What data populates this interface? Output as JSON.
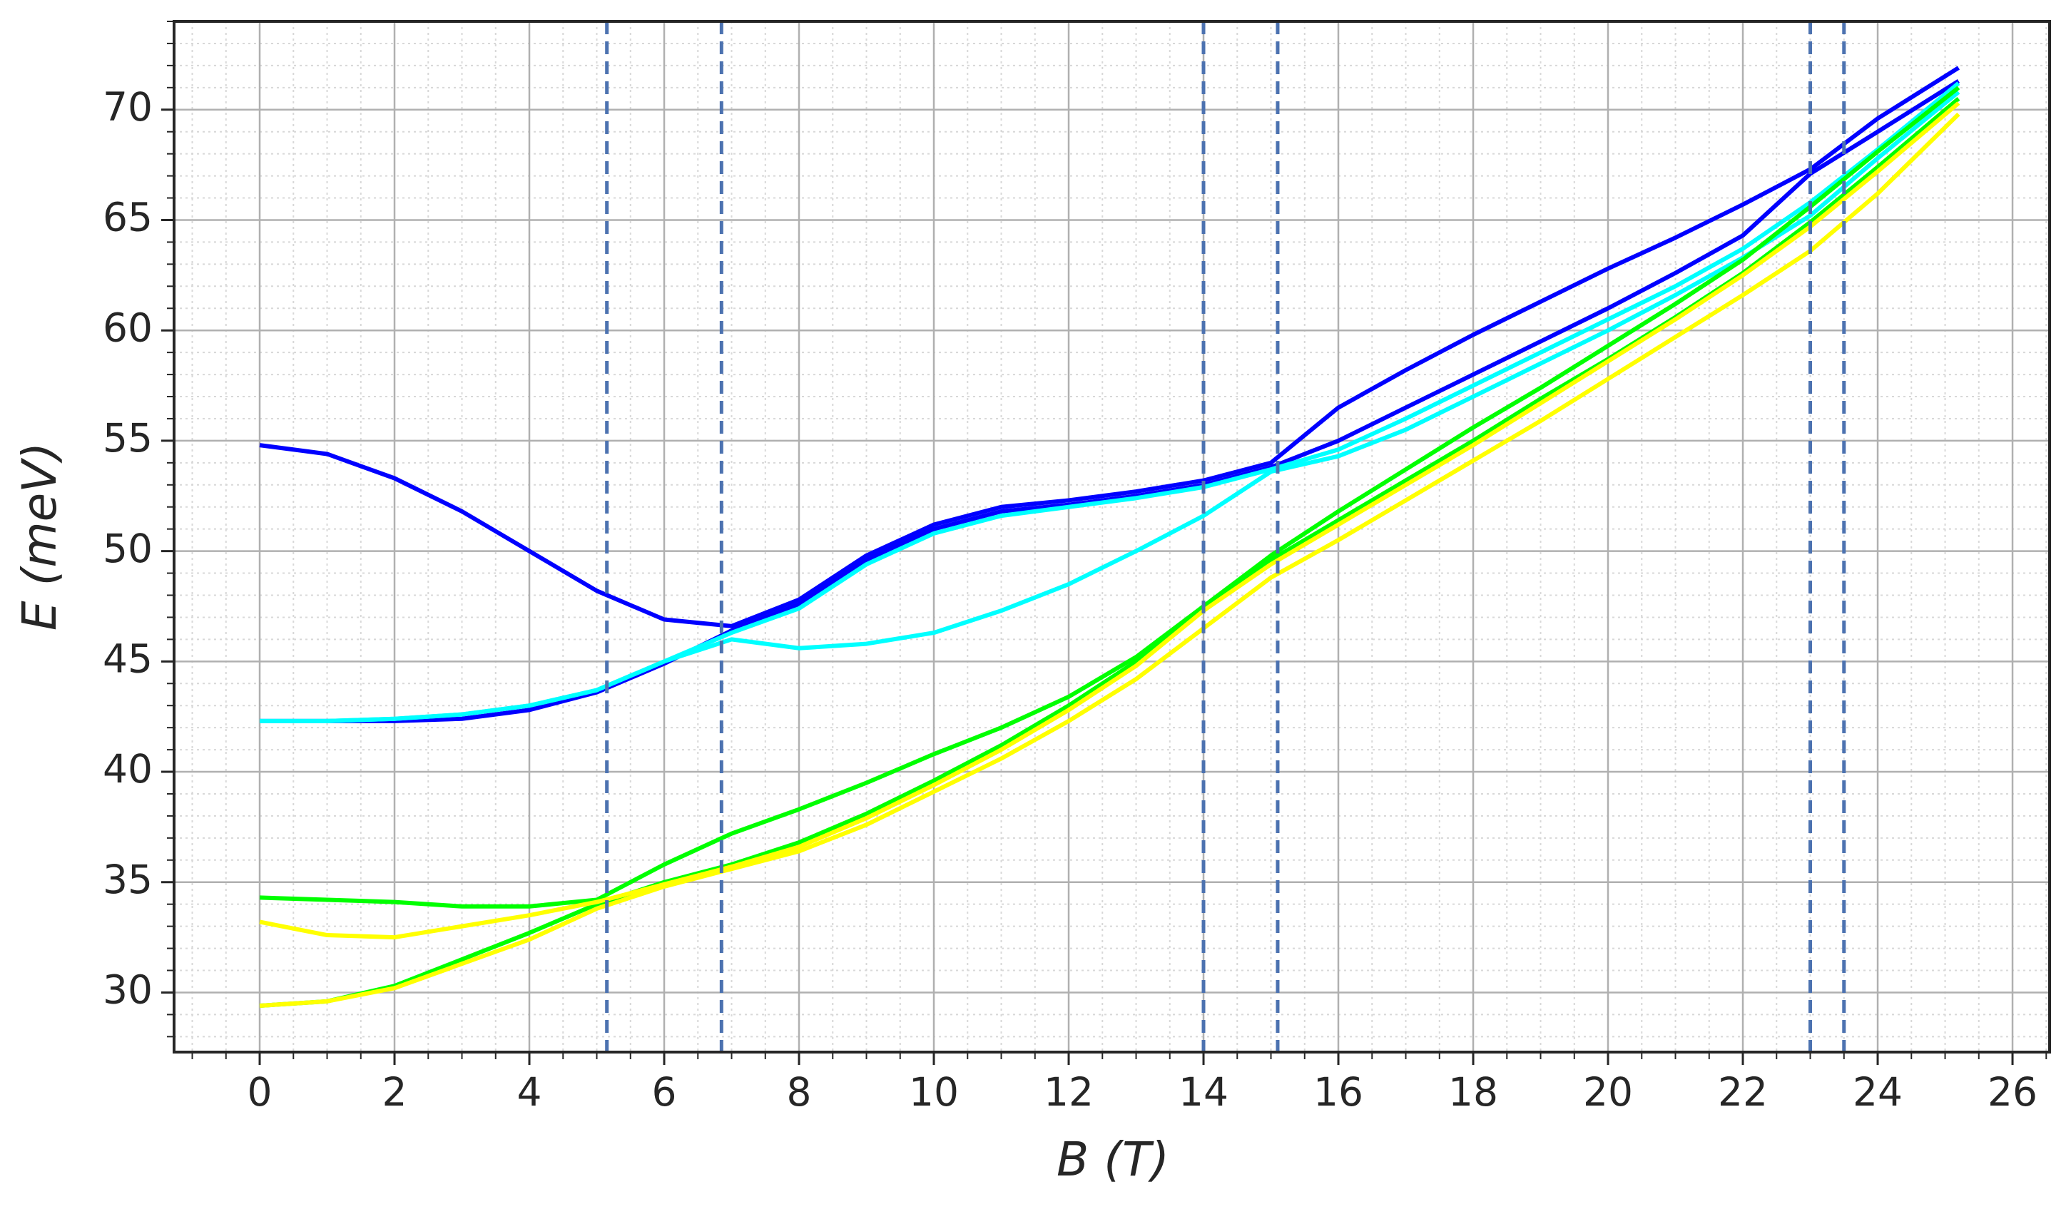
{
  "chart_data": {
    "type": "line",
    "xlabel": "B (T)",
    "ylabel": "E (meV)",
    "x": [
      0,
      1,
      2,
      3,
      4,
      5,
      6,
      7,
      8,
      9,
      10,
      11,
      12,
      13,
      14,
      15,
      16,
      17,
      18,
      19,
      20,
      21,
      22,
      23,
      24,
      25.2
    ],
    "series": [
      {
        "color": "#0000ff",
        "values": [
          54.8,
          54.4,
          53.3,
          51.8,
          50,
          48.2,
          46.9,
          46.6,
          47.8,
          49.8,
          51.2,
          52,
          52.3,
          52.7,
          53.2,
          54,
          56.5,
          58.2,
          59.8,
          61.3,
          62.8,
          64.2,
          65.7,
          67.3,
          69.6,
          71.9
        ]
      },
      {
        "color": "#0000ff",
        "values": [
          42.3,
          42.3,
          42.3,
          42.4,
          42.8,
          43.6,
          44.9,
          46.4,
          47.6,
          49.6,
          51,
          51.8,
          52.1,
          52.5,
          53,
          53.8,
          55,
          56.5,
          58,
          59.5,
          61,
          62.6,
          64.3,
          67.1,
          69,
          71.3
        ]
      },
      {
        "color": "#00ffff",
        "values": [
          42.3,
          42.3,
          42.4,
          42.6,
          43,
          43.7,
          45,
          46.3,
          47.4,
          49.4,
          50.8,
          51.6,
          52,
          52.4,
          52.9,
          53.7,
          54.6,
          56,
          57.5,
          59,
          60.5,
          62,
          63.7,
          65.8,
          68.2,
          71.2
        ]
      },
      {
        "color": "#00ffff",
        "values": [
          42.3,
          42.3,
          42.4,
          42.6,
          43,
          43.7,
          45,
          46,
          45.6,
          45.8,
          46.3,
          47.3,
          48.5,
          50,
          51.6,
          53.6,
          54.3,
          55.5,
          57,
          58.5,
          60,
          61.6,
          63.3,
          65.2,
          67.8,
          70.8
        ]
      },
      {
        "color": "#00ff00",
        "values": [
          34.3,
          34.2,
          34.1,
          33.9,
          33.9,
          34.2,
          35.8,
          37.2,
          38.3,
          39.5,
          40.8,
          42,
          43.4,
          45.2,
          47.5,
          49.8,
          51.8,
          53.7,
          55.6,
          57.4,
          59.3,
          61.2,
          63.2,
          65.6,
          68.1,
          71
        ]
      },
      {
        "color": "#00ff00",
        "values": [
          29.4,
          29.6,
          30.3,
          31.5,
          32.7,
          34,
          35,
          35.8,
          36.8,
          38.1,
          39.6,
          41.2,
          43,
          45,
          47.5,
          49.6,
          51.4,
          53.2,
          55,
          56.9,
          58.7,
          60.6,
          62.6,
          64.9,
          67.4,
          70.5
        ]
      },
      {
        "color": "#ffff00",
        "values": [
          33.2,
          32.6,
          32.5,
          33,
          33.5,
          34.1,
          34.9,
          35.7,
          36.6,
          37.9,
          39.4,
          41,
          42.8,
          44.8,
          47.3,
          49.4,
          51.2,
          53,
          54.8,
          56.7,
          58.6,
          60.5,
          62.5,
          64.7,
          67.2,
          70.3
        ]
      },
      {
        "color": "#ffff00",
        "values": [
          29.4,
          29.6,
          30.2,
          31.3,
          32.4,
          33.8,
          34.8,
          35.6,
          36.4,
          37.6,
          39.1,
          40.6,
          42.3,
          44.2,
          46.5,
          48.8,
          50.5,
          52.3,
          54.1,
          55.9,
          57.8,
          59.7,
          61.6,
          63.6,
          66.2,
          69.8
        ]
      }
    ],
    "vlines": [
      5.15,
      6.85,
      14.0,
      15.1,
      23.0,
      23.5
    ],
    "vline_color": "#4c72b0",
    "xlim": [
      -1.27,
      26.55
    ],
    "ylim": [
      27.3,
      74.0
    ],
    "xticks": [
      0,
      2,
      4,
      6,
      8,
      10,
      12,
      14,
      16,
      18,
      20,
      22,
      24,
      26
    ],
    "yticks": [
      30,
      35,
      40,
      45,
      50,
      55,
      60,
      65,
      70
    ],
    "xminor_step": 0.5,
    "yminor_step": 1,
    "grid": true
  }
}
